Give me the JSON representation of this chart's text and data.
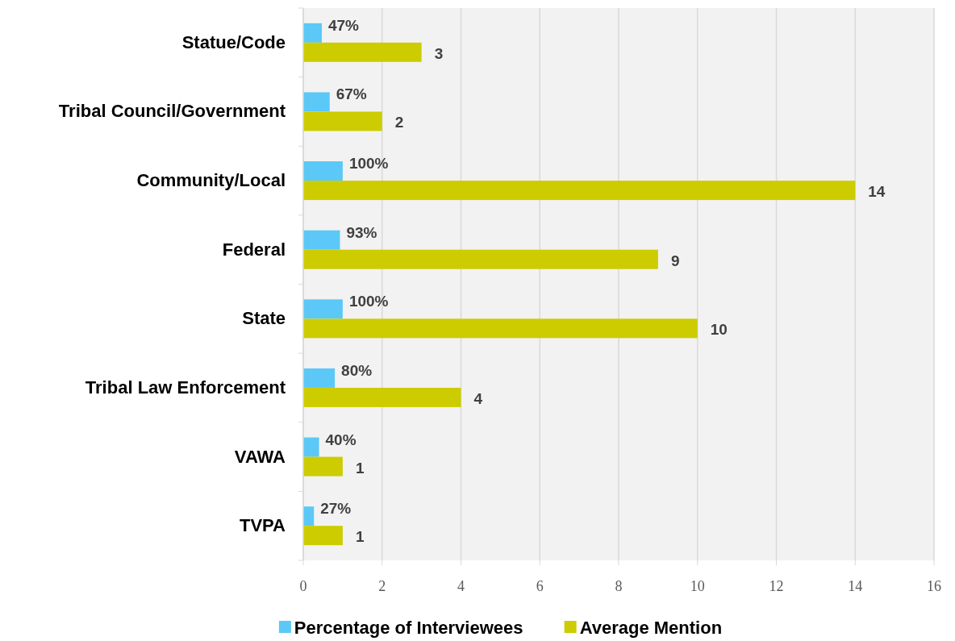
{
  "chart_data": {
    "type": "bar",
    "orientation": "horizontal",
    "categories": [
      "Statue/Code",
      "Tribal Council/Government",
      "Community/Local",
      "Federal",
      "State",
      "Tribal Law Enforcement",
      "VAWA",
      "TVPA"
    ],
    "series": [
      {
        "name": "Percentage of Interviewees",
        "color": "#5bc8f7",
        "values": [
          0.47,
          0.67,
          1.0,
          0.93,
          1.0,
          0.8,
          0.4,
          0.27
        ],
        "value_labels": [
          "47%",
          "67%",
          "100%",
          "93%",
          "100%",
          "80%",
          "40%",
          "27%"
        ]
      },
      {
        "name": "Average Mention",
        "color": "#cccc00",
        "values": [
          3,
          2,
          14,
          9,
          10,
          4,
          1,
          1
        ],
        "value_labels": [
          "3",
          "2",
          "14",
          "9",
          "10",
          "4",
          "1",
          "1"
        ]
      }
    ],
    "xlim": [
      0,
      16
    ],
    "xticks": [
      0,
      2,
      4,
      6,
      8,
      10,
      12,
      14,
      16
    ],
    "grid": "x",
    "legend": "bottom"
  }
}
